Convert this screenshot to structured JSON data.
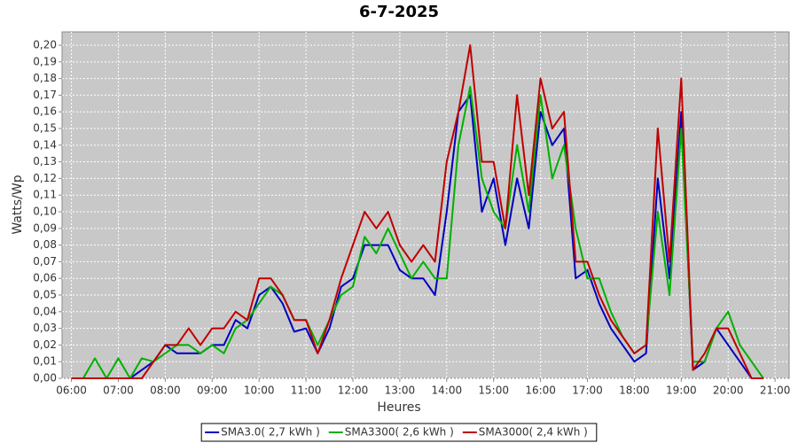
{
  "chart_data": {
    "type": "line",
    "title": "6-7-2025",
    "x_label": "Heures",
    "y_label": "Watts/Wp",
    "xlim": [
      5.8,
      21.3
    ],
    "ylim": [
      0,
      0.208
    ],
    "grid": true,
    "legend": "bottom",
    "xticks": [
      {
        "value": 6,
        "label": "06:00"
      },
      {
        "value": 7,
        "label": "07:00"
      },
      {
        "value": 8,
        "label": "08:00"
      },
      {
        "value": 9,
        "label": "09:00"
      },
      {
        "value": 10,
        "label": "10:00"
      },
      {
        "value": 11,
        "label": "11:00"
      },
      {
        "value": 12,
        "label": "12:00"
      },
      {
        "value": 13,
        "label": "13:00"
      },
      {
        "value": 14,
        "label": "14:00"
      },
      {
        "value": 15,
        "label": "15:00"
      },
      {
        "value": 16,
        "label": "16:00"
      },
      {
        "value": 17,
        "label": "17:00"
      },
      {
        "value": 18,
        "label": "18:00"
      },
      {
        "value": 19,
        "label": "19:00"
      },
      {
        "value": 20,
        "label": "20:00"
      },
      {
        "value": 21,
        "label": "21:00"
      }
    ],
    "yticks": [
      {
        "value": 0,
        "label": "0,00"
      },
      {
        "value": 0.01,
        "label": "0,01"
      },
      {
        "value": 0.02,
        "label": "0,02"
      },
      {
        "value": 0.03,
        "label": "0,03"
      },
      {
        "value": 0.04,
        "label": "0,04"
      },
      {
        "value": 0.05,
        "label": "0,05"
      },
      {
        "value": 0.06,
        "label": "0,06"
      },
      {
        "value": 0.07,
        "label": "0,07"
      },
      {
        "value": 0.08,
        "label": "0,08"
      },
      {
        "value": 0.09,
        "label": "0,09"
      },
      {
        "value": 0.1,
        "label": "0,10"
      },
      {
        "value": 0.11,
        "label": "0,11"
      },
      {
        "value": 0.12,
        "label": "0,12"
      },
      {
        "value": 0.13,
        "label": "0,13"
      },
      {
        "value": 0.14,
        "label": "0,14"
      },
      {
        "value": 0.15,
        "label": "0,15"
      },
      {
        "value": 0.16,
        "label": "0,16"
      },
      {
        "value": 0.17,
        "label": "0,17"
      },
      {
        "value": 0.18,
        "label": "0,18"
      },
      {
        "value": 0.19,
        "label": "0,19"
      },
      {
        "value": 0.2,
        "label": "0,20"
      }
    ],
    "x": [
      6,
      6.25,
      6.5,
      6.75,
      7,
      7.25,
      7.5,
      7.75,
      8,
      8.25,
      8.5,
      8.75,
      9,
      9.25,
      9.5,
      9.75,
      10,
      10.25,
      10.5,
      10.75,
      11,
      11.25,
      11.5,
      11.75,
      12,
      12.25,
      12.5,
      12.75,
      13,
      13.25,
      13.5,
      13.75,
      14,
      14.25,
      14.5,
      14.75,
      15,
      15.25,
      15.5,
      15.75,
      16,
      16.25,
      16.5,
      16.75,
      17,
      17.25,
      17.5,
      17.75,
      18,
      18.25,
      18.5,
      18.75,
      19,
      19.25,
      19.5,
      19.75,
      20,
      20.25,
      20.5,
      20.75
    ],
    "series": [
      {
        "name": "SMA3.0( 2,7 kWh )",
        "color": "#0000c0",
        "values": [
          0,
          0,
          0,
          0,
          0,
          0,
          0.005,
          0.01,
          0.02,
          0.015,
          0.015,
          0.015,
          0.02,
          0.02,
          0.035,
          0.03,
          0.05,
          0.055,
          0.045,
          0.028,
          0.03,
          0.015,
          0.03,
          0.055,
          0.06,
          0.08,
          0.08,
          0.08,
          0.065,
          0.06,
          0.06,
          0.05,
          0.1,
          0.16,
          0.17,
          0.1,
          0.12,
          0.08,
          0.12,
          0.09,
          0.16,
          0.14,
          0.15,
          0.06,
          0.065,
          0.045,
          0.03,
          0.02,
          0.01,
          0.015,
          0.12,
          0.06,
          0.16,
          0.005,
          0.01,
          0.03,
          0.02,
          0.01,
          0,
          0
        ]
      },
      {
        "name": "SMA3300( 2,6 kWh )",
        "color": "#00b000",
        "values": [
          0,
          0,
          0.012,
          0,
          0.012,
          0,
          0.012,
          0.01,
          0.015,
          0.02,
          0.02,
          0.015,
          0.02,
          0.015,
          0.03,
          0.035,
          0.045,
          0.055,
          0.05,
          0.035,
          0.035,
          0.02,
          0.035,
          0.05,
          0.055,
          0.085,
          0.075,
          0.09,
          0.075,
          0.06,
          0.07,
          0.06,
          0.06,
          0.14,
          0.175,
          0.12,
          0.1,
          0.09,
          0.14,
          0.1,
          0.17,
          0.12,
          0.14,
          0.09,
          0.06,
          0.06,
          0.04,
          0.025,
          0.015,
          0.02,
          0.1,
          0.05,
          0.15,
          0.01,
          0.01,
          0.03,
          0.04,
          0.02,
          0.01,
          0
        ]
      },
      {
        "name": "SMA3000( 2,4 kWh )",
        "color": "#c00000",
        "values": [
          0,
          0,
          0,
          0,
          0,
          0,
          0,
          0.01,
          0.02,
          0.02,
          0.03,
          0.02,
          0.03,
          0.03,
          0.04,
          0.035,
          0.06,
          0.06,
          0.05,
          0.035,
          0.035,
          0.015,
          0.035,
          0.06,
          0.08,
          0.1,
          0.09,
          0.1,
          0.08,
          0.07,
          0.08,
          0.07,
          0.13,
          0.16,
          0.2,
          0.13,
          0.13,
          0.09,
          0.17,
          0.11,
          0.18,
          0.15,
          0.16,
          0.07,
          0.07,
          0.05,
          0.035,
          0.025,
          0.015,
          0.02,
          0.15,
          0.07,
          0.18,
          0.005,
          0.015,
          0.03,
          0.03,
          0.015,
          0,
          0
        ]
      }
    ]
  }
}
